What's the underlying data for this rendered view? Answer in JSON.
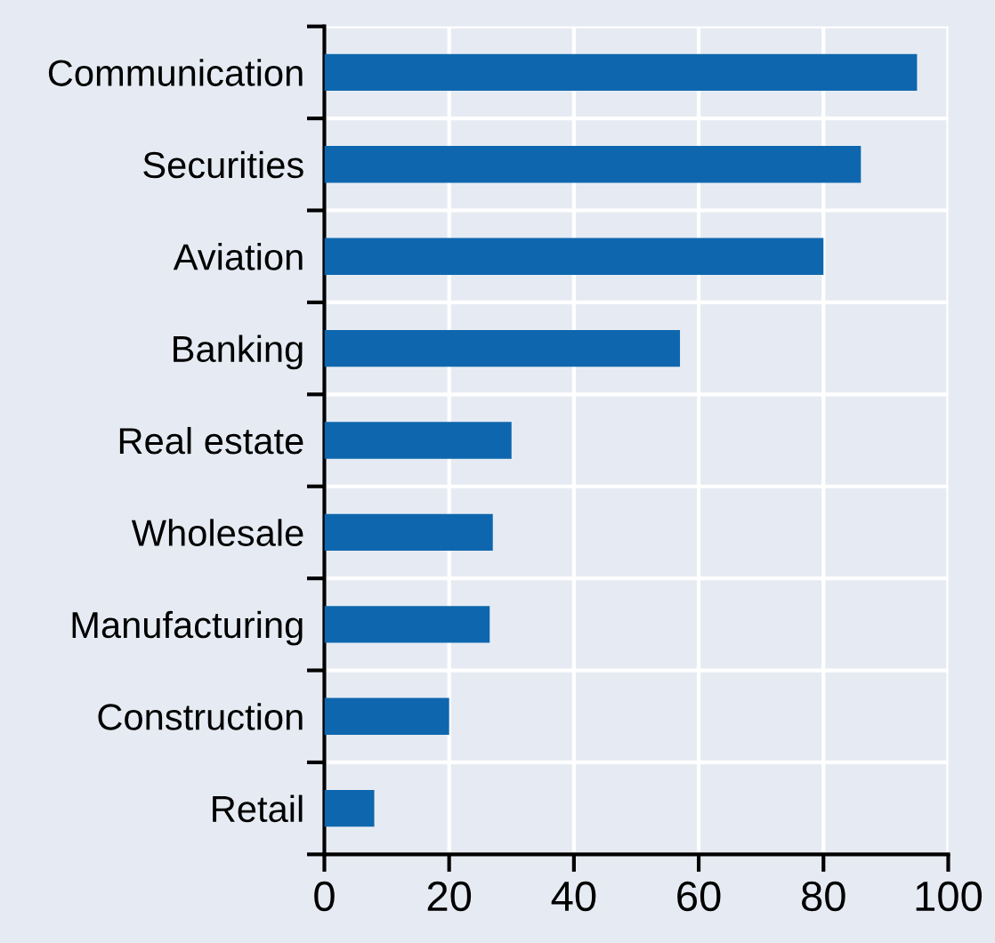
{
  "chart_data": {
    "type": "bar",
    "orientation": "horizontal",
    "categories": [
      "Communication",
      "Securities",
      "Aviation",
      "Banking",
      "Real estate",
      "Wholesale",
      "Manufacturing",
      "Construction",
      "Retail"
    ],
    "values": [
      95,
      86,
      80,
      57,
      30,
      27,
      26.5,
      20,
      8
    ],
    "color": "#0e67ae",
    "xlim": [
      0,
      100
    ],
    "xticks": [
      0,
      20,
      40,
      60,
      80,
      100
    ],
    "grid": true
  }
}
